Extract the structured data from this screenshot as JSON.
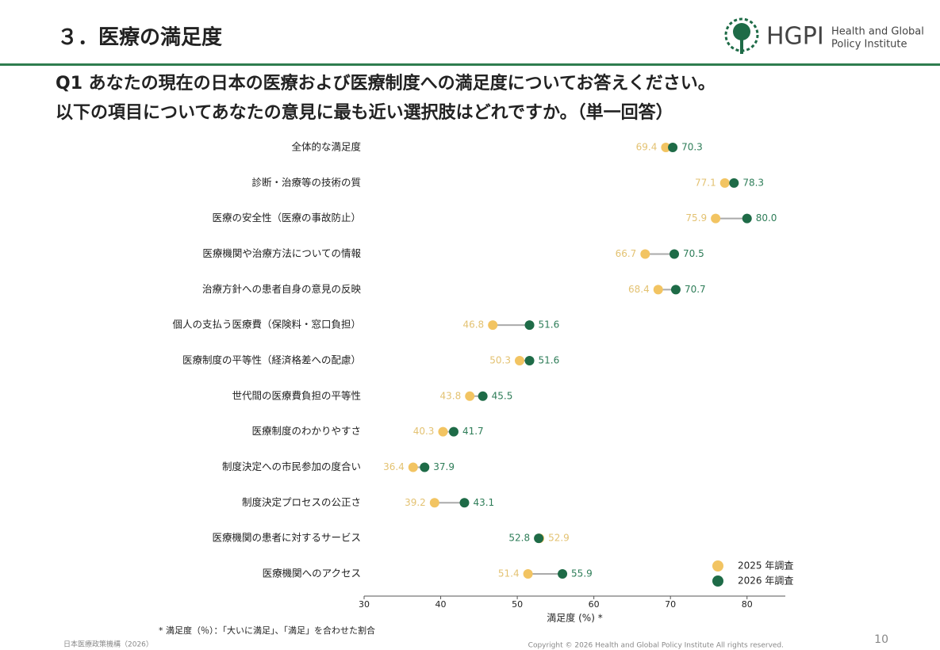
{
  "header": {
    "title": "３．医療の満足度",
    "logo_text": "HGPI",
    "logo_lines": [
      "Health and Global",
      "Policy Institute"
    ]
  },
  "question": [
    "Q1  あなたの現在の日本の医療および医療制度への満足度についてお答えください。",
    "以下の項目についてあなたの意見に最も近い選択肢はどれですか。（単一回答）"
  ],
  "chart_data": {
    "type": "dumbbell",
    "categories": [
      "全体的な満足度",
      "診断・治療等の技術の質",
      "医療の安全性（医療の事故防止）",
      "医療機関や治療方法についての情報",
      "治療方針への患者自身の意見の反映",
      "個人の支払う医療費（保険料・窓口負担）",
      "医療制度の平等性（経済格差への配慮）",
      "世代間の医療費負担の平等性",
      "医療制度のわかりやすさ",
      "制度決定への市民参加の度合い",
      "制度決定プロセスの公正さ",
      "医療機関の患者に対するサービス",
      "医療機関へのアクセス"
    ],
    "series": [
      {
        "name": "2025 年調査",
        "color": "#f2c462",
        "label_color": "#e3c272",
        "values": [
          69.4,
          77.1,
          75.9,
          66.7,
          68.4,
          46.8,
          50.3,
          43.8,
          40.3,
          36.4,
          39.2,
          52.9,
          51.4
        ],
        "value_labels": [
          "69.4",
          "77.1",
          "75.9",
          "66.7",
          "68.4",
          "46.8",
          "50.3",
          "43.8",
          "40.3",
          "36.4",
          "39.2",
          "52.9",
          "51.4"
        ]
      },
      {
        "name": "2026 年調査",
        "color": "#1e6b47",
        "label_color": "#2e7d58",
        "values": [
          70.3,
          78.3,
          80.0,
          70.5,
          70.7,
          51.6,
          51.6,
          45.5,
          41.7,
          37.9,
          43.1,
          52.8,
          55.9
        ],
        "value_labels": [
          "70.3",
          "78.3",
          "80.0",
          "70.5",
          "70.7",
          "51.6",
          "51.6",
          "45.5",
          "41.7",
          "37.9",
          "43.1",
          "52.8",
          "55.9"
        ]
      }
    ],
    "xlim": [
      30,
      85
    ],
    "xticks": [
      30,
      40,
      50,
      60,
      70,
      80
    ],
    "x_label": "満足度 (%) *",
    "legend": "lower right"
  },
  "footnote": "* 満足度（％）：「大いに満足」、「満足」を合わせた割合",
  "footer": {
    "org": "日本医療政策機構（2026）",
    "copyright": "Copyright © 2026 Health and Global Policy Institute  All rights reserved.",
    "page": "10"
  }
}
